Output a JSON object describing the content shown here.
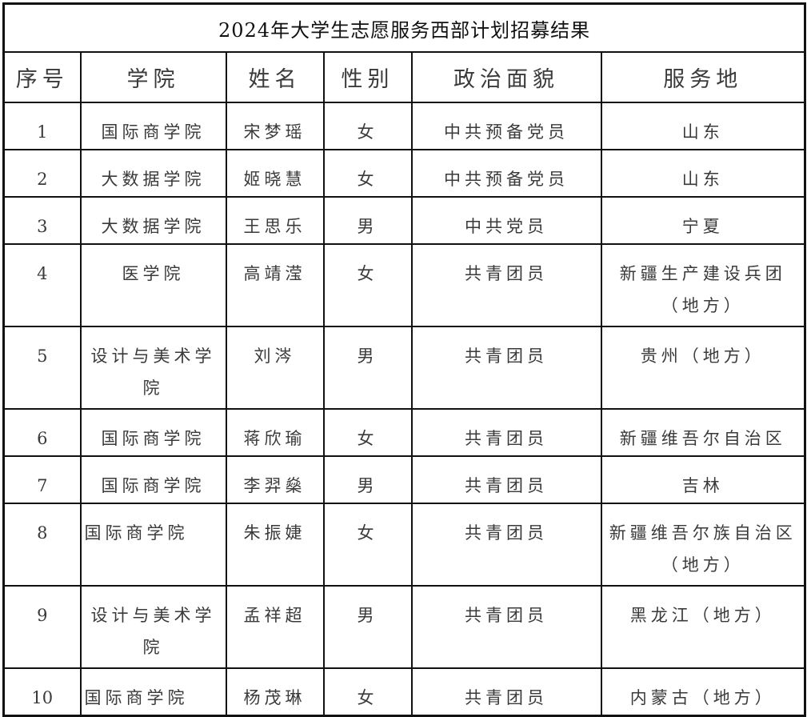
{
  "title": "2024年大学生志愿服务西部计划招募结果",
  "columns": [
    "序号",
    "学院",
    "姓名",
    "性别",
    "政治面貌",
    "服务地"
  ],
  "rows": [
    {
      "no": "1",
      "college": "国际商学院",
      "name": "宋梦瑶",
      "gender": "女",
      "political": "中共预备党员",
      "place": "山东"
    },
    {
      "no": "2",
      "college": "大数据学院",
      "name": "姬晓慧",
      "gender": "女",
      "political": "中共预备党员",
      "place": "山东"
    },
    {
      "no": "3",
      "college": "大数据学院",
      "name": "王思乐",
      "gender": "男",
      "political": "中共党员",
      "place": "宁夏"
    },
    {
      "no": "4",
      "college": "医学院",
      "name": "高靖滢",
      "gender": "女",
      "political": "共青团员",
      "place": "新疆生产建设兵团（地方）"
    },
    {
      "no": "5",
      "college": "设计与美术学院",
      "name": "刘涔",
      "gender": "男",
      "political": "共青团员",
      "place": "贵州（地方）"
    },
    {
      "no": "6",
      "college": "国际商学院",
      "name": "蒋欣瑜",
      "gender": "女",
      "political": "共青团员",
      "place": "新疆维吾尔自治区"
    },
    {
      "no": "7",
      "college": "国际商学院",
      "name": "李羿燊",
      "gender": "男",
      "political": "共青团员",
      "place": "吉林"
    },
    {
      "no": "8",
      "college": "国际商学院",
      "name": "朱振婕",
      "gender": "女",
      "political": "共青团员",
      "place": "新疆维吾尔族自治区（地方）"
    },
    {
      "no": "9",
      "college": "设计与美术学院",
      "name": "孟祥超",
      "gender": "男",
      "political": "共青团员",
      "place": "黑龙江（地方）"
    },
    {
      "no": "10",
      "college": "国际商学院",
      "name": "杨茂琳",
      "gender": "女",
      "political": "共青团员",
      "place": "内蒙古（地方）"
    }
  ]
}
